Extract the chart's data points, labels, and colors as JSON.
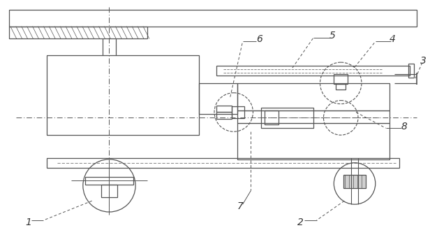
{
  "bg_color": "#ffffff",
  "line_color": "#555555",
  "label_color": "#333333",
  "lw": 0.9,
  "label_fs": 10
}
